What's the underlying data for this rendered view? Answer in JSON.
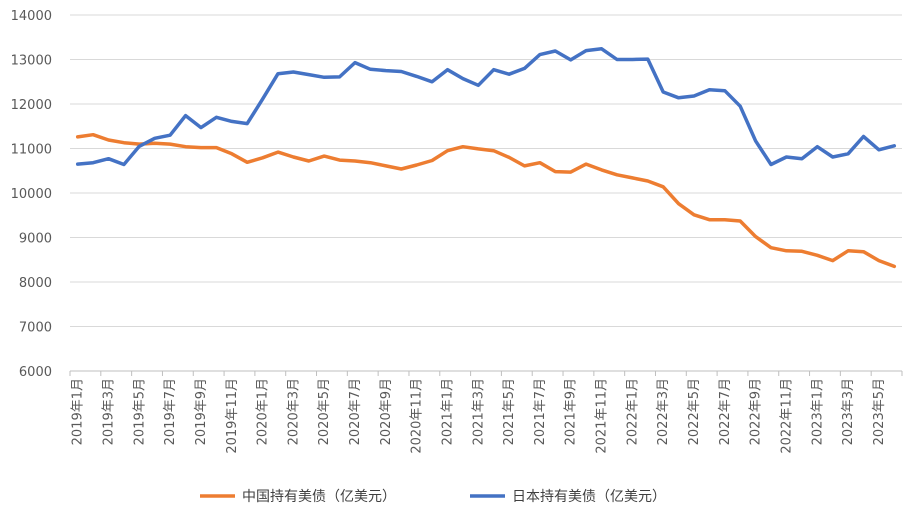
{
  "chart_data": {
    "type": "line",
    "title": "",
    "xlabel": "",
    "ylabel": "",
    "ylim": [
      6000,
      14000
    ],
    "yticks": [
      6000,
      7000,
      8000,
      9000,
      10000,
      11000,
      12000,
      13000,
      14000
    ],
    "grid": true,
    "legend_position": "bottom",
    "categories": [
      "2019年1月",
      "2019年2月",
      "2019年3月",
      "2019年4月",
      "2019年5月",
      "2019年6月",
      "2019年7月",
      "2019年8月",
      "2019年9月",
      "2019年10月",
      "2019年11月",
      "2019年12月",
      "2020年1月",
      "2020年2月",
      "2020年3月",
      "2020年4月",
      "2020年5月",
      "2020年6月",
      "2020年7月",
      "2020年8月",
      "2020年9月",
      "2020年10月",
      "2020年11月",
      "2020年12月",
      "2021年1月",
      "2021年2月",
      "2021年3月",
      "2021年4月",
      "2021年5月",
      "2021年6月",
      "2021年7月",
      "2021年8月",
      "2021年9月",
      "2021年10月",
      "2021年11月",
      "2021年12月",
      "2022年1月",
      "2022年2月",
      "2022年3月",
      "2022年4月",
      "2022年5月",
      "2022年6月",
      "2022年7月",
      "2022年8月",
      "2022年9月",
      "2022年10月",
      "2022年11月",
      "2022年12月",
      "2023年1月",
      "2023年2月",
      "2023年3月",
      "2023年4月",
      "2023年5月",
      "2023年6月"
    ],
    "tick_labels_shown": [
      "2019年1月",
      "2019年3月",
      "2019年5月",
      "2019年7月",
      "2019年9月",
      "2019年11月",
      "2020年1月",
      "2020年3月",
      "2020年5月",
      "2020年7月",
      "2020年9月",
      "2020年11月",
      "2021年1月",
      "2021年3月",
      "2021年5月",
      "2021年7月",
      "2021年9月",
      "2021年11月",
      "2022年1月",
      "2022年3月",
      "2022年5月",
      "2022年7月",
      "2022年9月",
      "2022年11月",
      "2023年1月",
      "2023年3月",
      "2023年5月"
    ],
    "series": [
      {
        "name": "中国持有美债（亿美元）",
        "color": "#ED7D31",
        "values": [
          11260,
          11310,
          11190,
          11130,
          11100,
          11120,
          11100,
          11040,
          11020,
          11020,
          10880,
          10690,
          10790,
          10920,
          10810,
          10720,
          10830,
          10740,
          10720,
          10680,
          10610,
          10540,
          10630,
          10730,
          10950,
          11040,
          10990,
          10950,
          10800,
          10610,
          10680,
          10480,
          10470,
          10650,
          10520,
          10410,
          10340,
          10270,
          10140,
          9760,
          9510,
          9400,
          9400,
          9370,
          9020,
          8770,
          8700,
          8690,
          8600,
          8480,
          8700,
          8680,
          8480,
          8350
        ]
      },
      {
        "name": "日本持有美债（亿美元）",
        "color": "#4472C4",
        "values": [
          10650,
          10680,
          10770,
          10640,
          11050,
          11230,
          11300,
          11740,
          11470,
          11700,
          11610,
          11560,
          12110,
          12680,
          12720,
          12660,
          12600,
          12610,
          12930,
          12780,
          12750,
          12730,
          12620,
          12500,
          12770,
          12570,
          12420,
          12770,
          12670,
          12800,
          13110,
          13190,
          12990,
          13200,
          13240,
          13000,
          13000,
          13010,
          12270,
          12140,
          12180,
          12320,
          12300,
          11950,
          11170,
          10640,
          10810,
          10770,
          11040,
          10810,
          10880,
          11270,
          10970,
          11060
        ]
      }
    ]
  }
}
